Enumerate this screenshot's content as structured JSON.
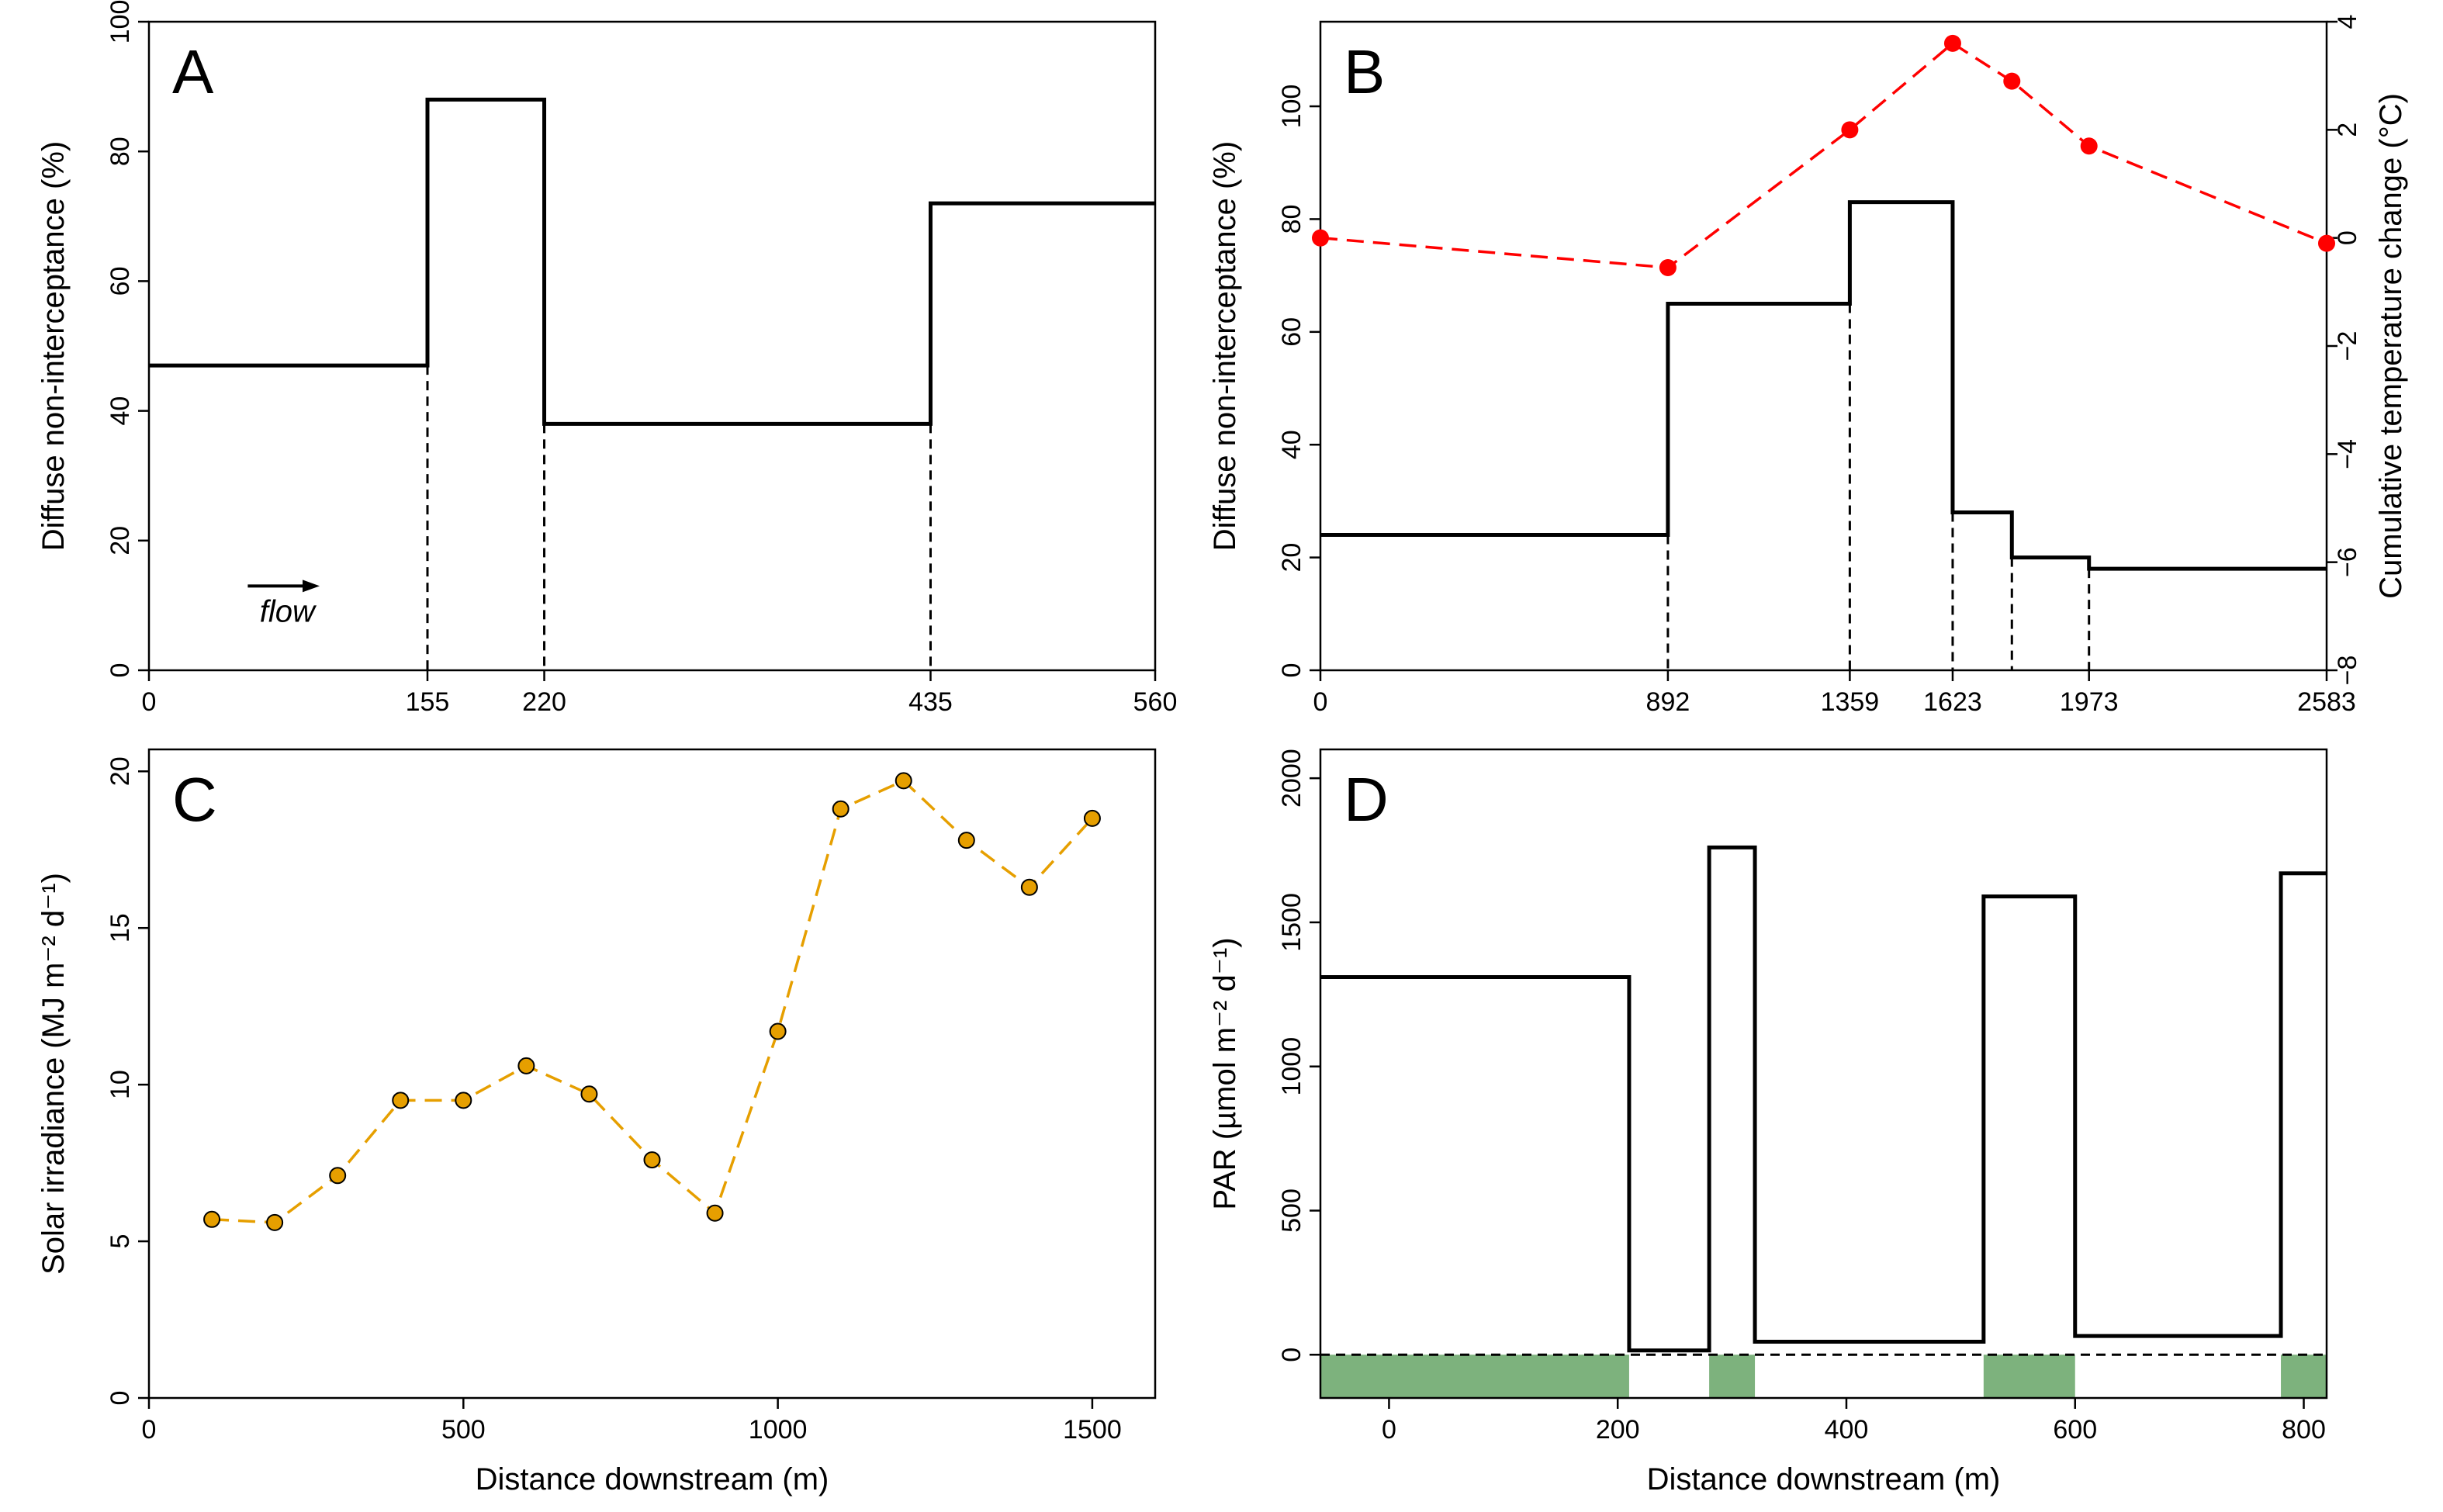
{
  "chart_data": [
    {
      "panel": "A",
      "type": "step",
      "letter": "A",
      "xlim": [
        0,
        560
      ],
      "ylim": [
        0,
        100
      ],
      "ylabel": "Diffuse non-interceptance (%)",
      "xlabel": "",
      "x_ticks": [
        0,
        155,
        220,
        435,
        560
      ],
      "y_ticks": [
        0,
        20,
        40,
        60,
        80,
        100
      ],
      "segments": [
        {
          "x0": 0,
          "x1": 155,
          "y": 47
        },
        {
          "x0": 155,
          "x1": 220,
          "y": 88
        },
        {
          "x0": 220,
          "x1": 435,
          "y": 38
        },
        {
          "x0": 435,
          "x1": 560,
          "y": 72
        }
      ],
      "boundaries": [
        155,
        220,
        435
      ],
      "annotation": {
        "text": "flow",
        "arrow_x": [
          55,
          95
        ],
        "arrow_y": 13,
        "text_x": 77,
        "text_y": 7.5
      }
    },
    {
      "panel": "B",
      "type": "step+line",
      "letter": "B",
      "xlim": [
        0,
        2583
      ],
      "ylim": [
        0,
        115
      ],
      "ylabel": "Diffuse non-interceptance (%)",
      "y2label": "Cumulative temperature change (°C)",
      "y2lim": [
        -8,
        4
      ],
      "x_ticks": [
        0,
        892,
        1359,
        1623,
        1973,
        2583
      ],
      "y_ticks": [
        0,
        20,
        40,
        60,
        80,
        100
      ],
      "y2_ticks": [
        -8,
        -6,
        -4,
        -2,
        0,
        2,
        4
      ],
      "segments": [
        {
          "x0": 0,
          "x1": 892,
          "y": 24
        },
        {
          "x0": 892,
          "x1": 1359,
          "y": 65
        },
        {
          "x0": 1359,
          "x1": 1623,
          "y": 83
        },
        {
          "x0": 1623,
          "x1": 1775,
          "y": 28
        },
        {
          "x0": 1775,
          "x1": 1973,
          "y": 20
        },
        {
          "x0": 1973,
          "x1": 2583,
          "y": 18
        }
      ],
      "boundaries": [
        892,
        1359,
        1623,
        1775,
        1973
      ],
      "series": [
        {
          "name": "Cumulative temperature change",
          "color": "#ff0000",
          "x": [
            0,
            892,
            1359,
            1623,
            1775,
            1973,
            2583
          ],
          "y": [
            0.0,
            -0.55,
            2.0,
            3.6,
            2.9,
            1.7,
            -0.1
          ]
        }
      ]
    },
    {
      "panel": "C",
      "type": "line",
      "letter": "C",
      "xlim": [
        0,
        1600
      ],
      "ylim": [
        0,
        20.7
      ],
      "xlabel": "Distance downstream (m)",
      "ylabel": "Solar irradiance (MJ m⁻² d⁻¹)",
      "x_ticks": [
        0,
        500,
        1000,
        1500
      ],
      "y_ticks": [
        0,
        5,
        10,
        15,
        20
      ],
      "series": [
        {
          "name": "Solar irradiance",
          "color": "#e69f00",
          "x": [
            100,
            200,
            300,
            400,
            500,
            600,
            700,
            800,
            900,
            1000,
            1100,
            1200,
            1300,
            1400,
            1500
          ],
          "y": [
            5.7,
            5.6,
            7.1,
            9.5,
            9.5,
            10.6,
            9.7,
            7.6,
            5.9,
            11.7,
            18.8,
            19.7,
            17.8,
            16.3,
            18.5
          ]
        }
      ]
    },
    {
      "panel": "D",
      "type": "step",
      "letter": "D",
      "xlim": [
        -60,
        820
      ],
      "ylim": [
        -150,
        2100
      ],
      "xlabel": "Distance downstream (m)",
      "ylabel": "PAR (µmol m⁻² d⁻¹)",
      "x_ticks": [
        0,
        200,
        400,
        600,
        800
      ],
      "y_ticks": [
        0,
        500,
        1000,
        1500,
        2000
      ],
      "segments": [
        {
          "x0": -60,
          "x1": 210,
          "y": 1310
        },
        {
          "x0": 210,
          "x1": 280,
          "y": 15
        },
        {
          "x0": 280,
          "x1": 320,
          "y": 1760
        },
        {
          "x0": 320,
          "x1": 520,
          "y": 45
        },
        {
          "x0": 520,
          "x1": 600,
          "y": 1590
        },
        {
          "x0": 600,
          "x1": 780,
          "y": 65
        },
        {
          "x0": 780,
          "x1": 820,
          "y": 1670
        }
      ],
      "shaded_regions": [
        [
          -60,
          210
        ],
        [
          280,
          320
        ],
        [
          520,
          600
        ],
        [
          780,
          820
        ]
      ],
      "shade_color": "#7db27d",
      "zero_line": 0
    }
  ]
}
